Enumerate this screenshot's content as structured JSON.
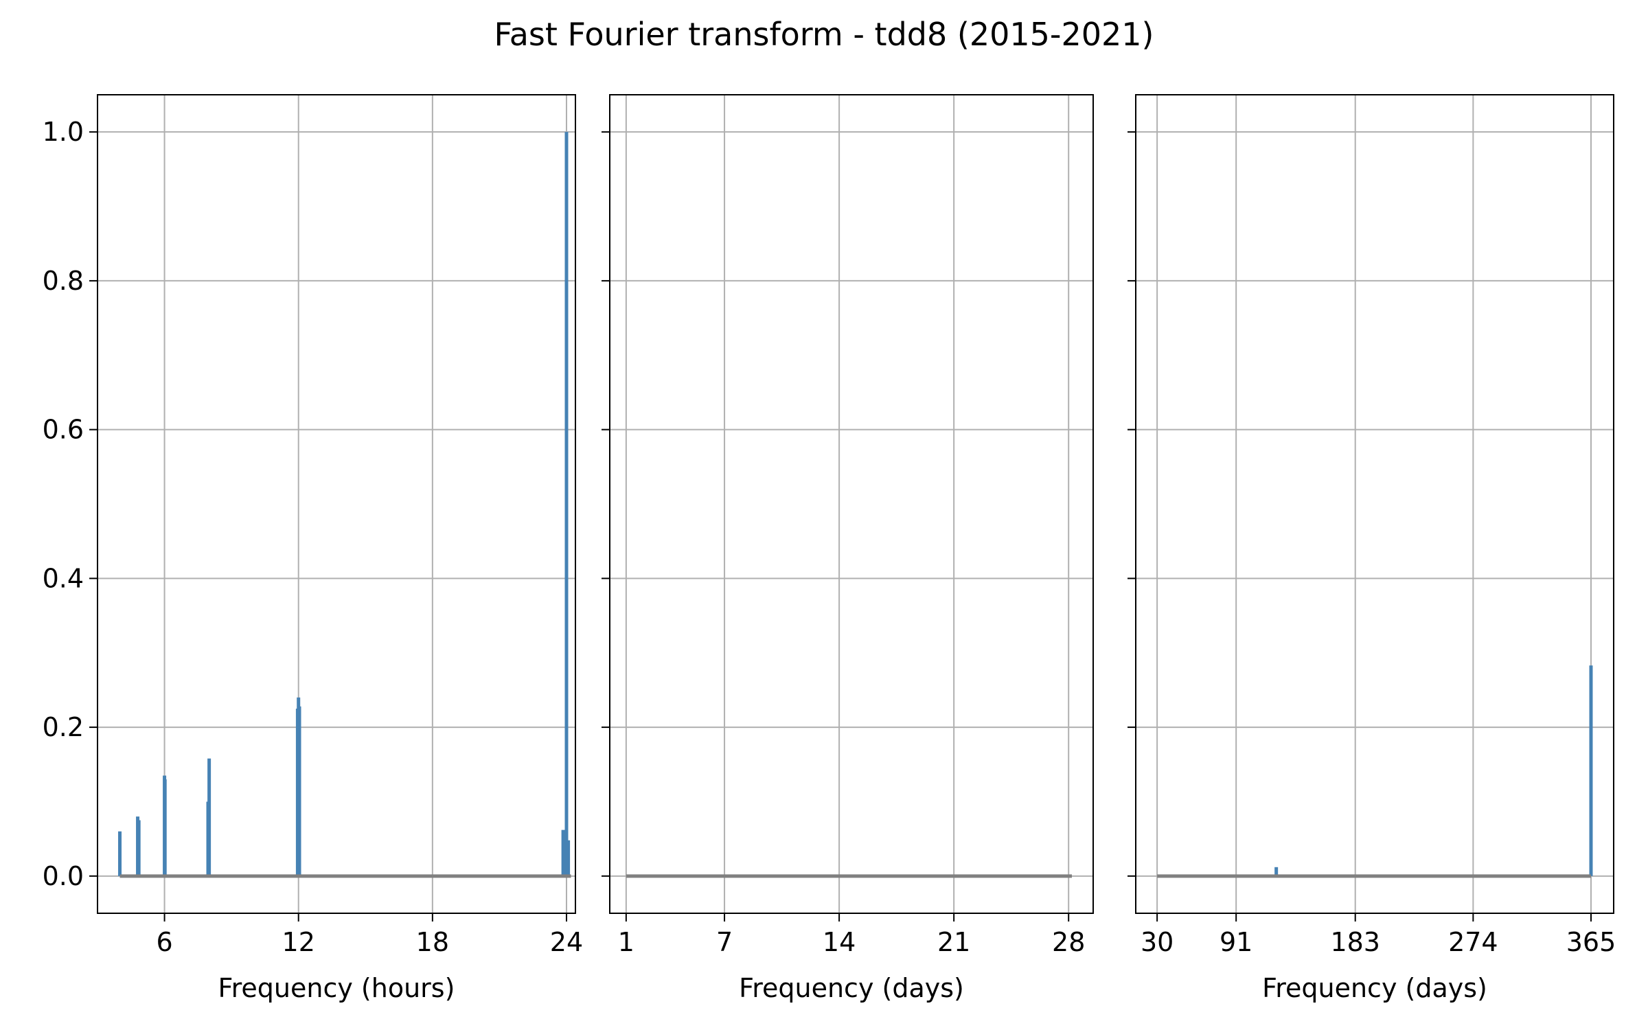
{
  "figure": {
    "title": "Fast Fourier transform - tdd8 (2015-2021)"
  },
  "colors": {
    "series": "#4682b4",
    "baseline": "#808080",
    "grid": "#b0b0b0",
    "axes": "#000000"
  },
  "chart_data": [
    {
      "type": "bar",
      "xlabel": "Frequency (hours)",
      "ylabel": "",
      "xlim": [
        3,
        24.4
      ],
      "ylim": [
        -0.05,
        1.05
      ],
      "xticks": [
        6,
        12,
        18,
        24
      ],
      "xtick_labels": [
        "6",
        "12",
        "18",
        "24"
      ],
      "yticks": [
        0.0,
        0.2,
        0.4,
        0.6,
        0.8,
        1.0
      ],
      "ytick_labels": [
        "0.0",
        "0.2",
        "0.4",
        "0.6",
        "0.8",
        "1.0"
      ],
      "grid": true,
      "baseline": [
        4,
        24.2
      ],
      "series": [
        {
          "x": [
            4.0,
            4.8,
            4.85,
            6.0,
            6.02,
            7.95,
            8.0,
            11.96,
            12.0,
            12.04,
            23.85,
            23.92,
            24.0,
            24.08
          ],
          "y": [
            0.06,
            0.08,
            0.075,
            0.135,
            0.13,
            0.1,
            0.158,
            0.225,
            0.24,
            0.228,
            0.062,
            0.06,
            1.0,
            0.048
          ]
        }
      ]
    },
    {
      "type": "bar",
      "xlabel": "Frequency (days)",
      "ylabel": "",
      "xlim": [
        0.0,
        29.5
      ],
      "ylim": [
        -0.05,
        1.05
      ],
      "xticks": [
        1,
        7,
        14,
        21,
        28
      ],
      "xtick_labels": [
        "1",
        "7",
        "14",
        "21",
        "28"
      ],
      "yticks": [
        0.0,
        0.2,
        0.4,
        0.6,
        0.8,
        1.0
      ],
      "ytick_labels": [
        "",
        "",
        "",
        "",
        "",
        ""
      ],
      "grid": true,
      "baseline": [
        1,
        28.2
      ],
      "series": [
        {
          "x": [],
          "y": []
        }
      ]
    },
    {
      "type": "bar",
      "xlabel": "Frequency (days)",
      "ylabel": "",
      "xlim": [
        13.5,
        382.5
      ],
      "ylim": [
        -0.05,
        1.05
      ],
      "xticks": [
        30,
        91,
        183,
        274,
        365
      ],
      "xtick_labels": [
        "30",
        "91",
        "183",
        "274",
        "365"
      ],
      "yticks": [
        0.0,
        0.2,
        0.4,
        0.6,
        0.8,
        1.0
      ],
      "ytick_labels": [
        "",
        "",
        "",
        "",
        "",
        ""
      ],
      "grid": true,
      "baseline": [
        30,
        365
      ],
      "series": [
        {
          "x": [
            122,
            365
          ],
          "y": [
            0.012,
            0.283
          ]
        }
      ]
    }
  ]
}
